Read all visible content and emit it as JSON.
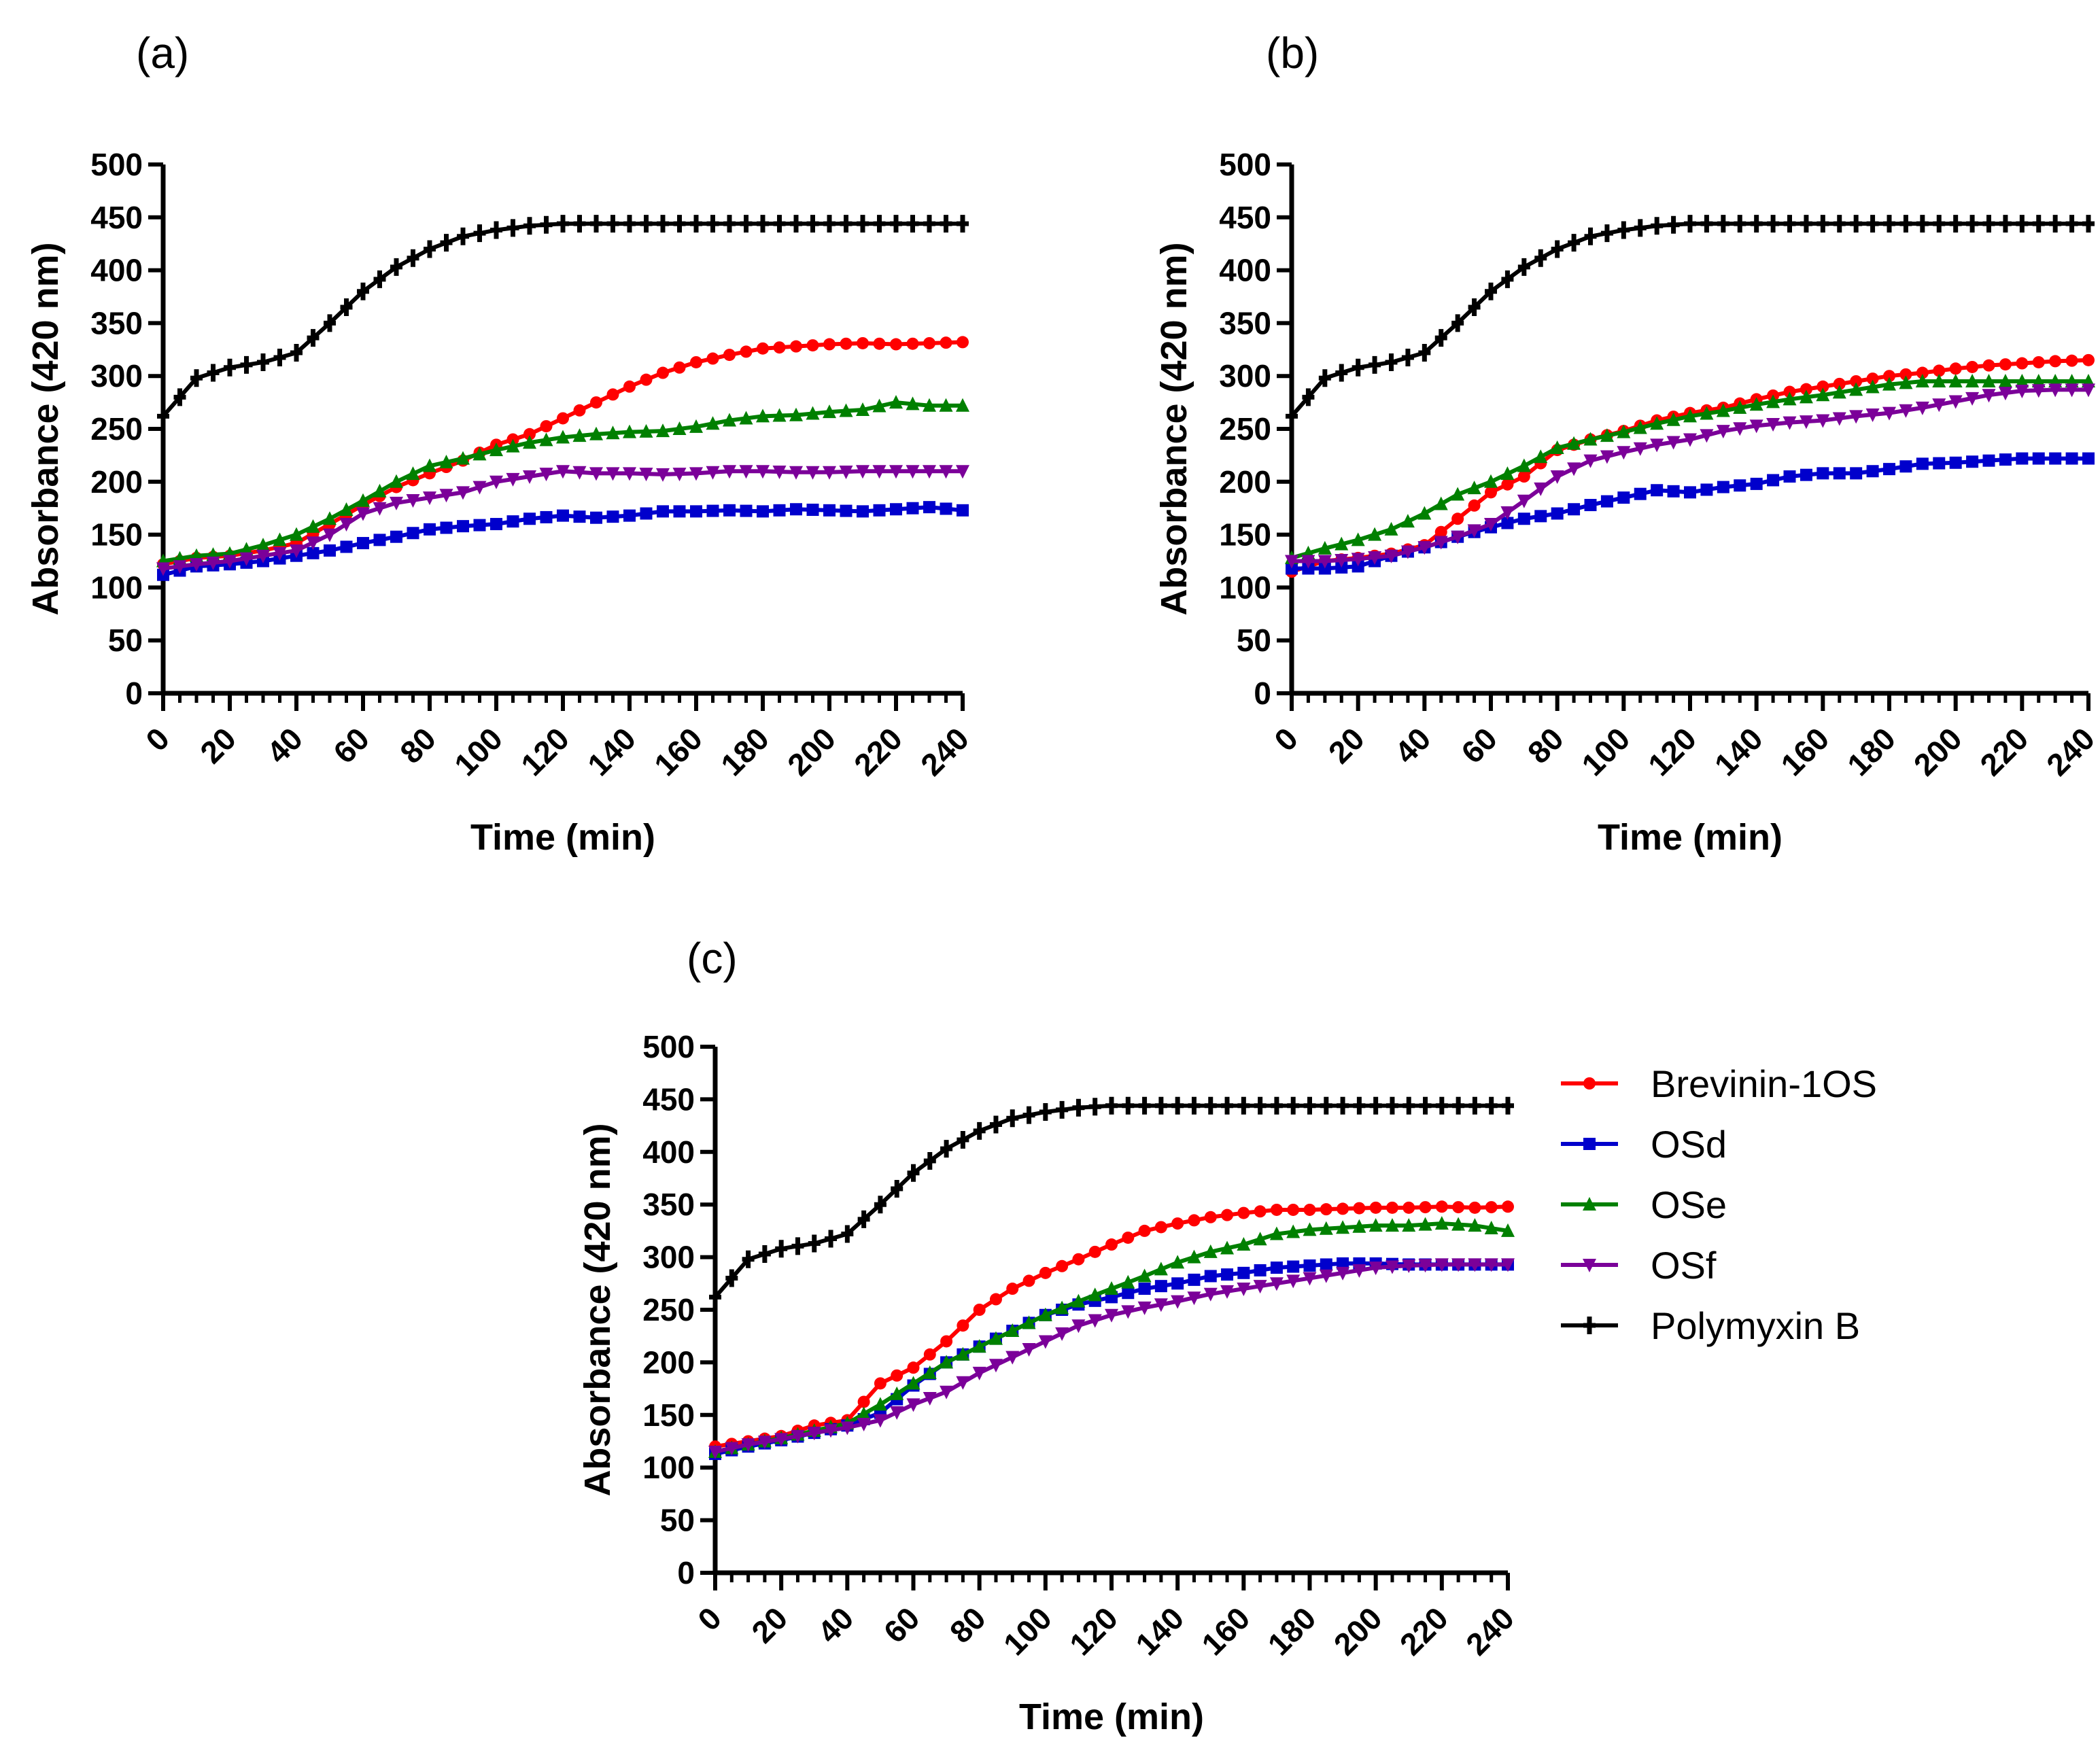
{
  "chart_data": [
    {
      "type": "line",
      "panel_label": "(a)",
      "xlabel": "Time (min)",
      "ylabel": "Absorbance (420 nm)",
      "xlim": [
        0,
        240
      ],
      "ylim": [
        0,
        500
      ],
      "x_ticks": [
        0,
        20,
        40,
        60,
        80,
        100,
        120,
        140,
        160,
        180,
        200,
        220,
        240
      ],
      "y_ticks": [
        0,
        50,
        100,
        150,
        200,
        250,
        300,
        350,
        400,
        450,
        500
      ],
      "x": [
        0,
        10,
        20,
        30,
        40,
        50,
        60,
        70,
        80,
        90,
        100,
        110,
        120,
        130,
        140,
        150,
        160,
        170,
        180,
        190,
        200,
        210,
        220,
        230,
        240
      ],
      "series": [
        {
          "name": "Brevinin-1OS",
          "color": "#ff0000",
          "marker": "circle",
          "values": [
            122,
            128,
            130,
            135,
            142,
            160,
            178,
            195,
            208,
            220,
            235,
            245,
            260,
            275,
            290,
            303,
            313,
            320,
            326,
            328,
            330,
            331,
            330,
            331,
            332
          ]
        },
        {
          "name": "OSd",
          "color": "#0000cc",
          "marker": "square",
          "values": [
            112,
            120,
            122,
            125,
            130,
            135,
            142,
            148,
            155,
            158,
            160,
            165,
            168,
            166,
            168,
            172,
            172,
            173,
            172,
            174,
            173,
            172,
            174,
            176,
            173
          ]
        },
        {
          "name": "OSe",
          "color": "#008000",
          "marker": "triangle",
          "values": [
            125,
            130,
            132,
            140,
            150,
            165,
            182,
            200,
            215,
            222,
            230,
            237,
            242,
            245,
            247,
            248,
            252,
            258,
            262,
            263,
            266,
            268,
            275,
            272,
            272
          ]
        },
        {
          "name": "OSf",
          "color": "#7b0099",
          "marker": "triangle-down",
          "values": [
            118,
            122,
            125,
            130,
            135,
            150,
            170,
            180,
            185,
            190,
            200,
            205,
            210,
            208,
            208,
            207,
            208,
            210,
            210,
            209,
            209,
            210,
            210,
            210,
            210
          ]
        },
        {
          "name": "Polymyxin B",
          "color": "#000000",
          "marker": "plus",
          "values": [
            262,
            298,
            308,
            313,
            322,
            350,
            380,
            403,
            420,
            432,
            438,
            442,
            444,
            444,
            444,
            444,
            444,
            444,
            444,
            444,
            444,
            444,
            444,
            444,
            444
          ]
        }
      ]
    },
    {
      "type": "line",
      "panel_label": "(b)",
      "xlabel": "Time (min)",
      "ylabel": "Absorbance (420 nm)",
      "xlim": [
        0,
        240
      ],
      "ylim": [
        0,
        500
      ],
      "x_ticks": [
        0,
        20,
        40,
        60,
        80,
        100,
        120,
        140,
        160,
        180,
        200,
        220,
        240
      ],
      "y_ticks": [
        0,
        50,
        100,
        150,
        200,
        250,
        300,
        350,
        400,
        450,
        500
      ],
      "x": [
        0,
        10,
        20,
        30,
        40,
        50,
        60,
        70,
        80,
        90,
        100,
        110,
        120,
        130,
        140,
        150,
        160,
        170,
        180,
        190,
        200,
        210,
        220,
        230,
        240
      ],
      "series": [
        {
          "name": "Brevinin-1OS",
          "color": "#ff0000",
          "marker": "circle",
          "values": [
            115,
            125,
            128,
            132,
            140,
            165,
            190,
            205,
            230,
            240,
            248,
            258,
            265,
            270,
            278,
            285,
            290,
            295,
            300,
            303,
            307,
            310,
            312,
            314,
            315
          ]
        },
        {
          "name": "OSd",
          "color": "#0000cc",
          "marker": "square",
          "values": [
            118,
            118,
            120,
            130,
            138,
            148,
            157,
            165,
            170,
            178,
            185,
            192,
            190,
            195,
            198,
            205,
            208,
            208,
            212,
            217,
            218,
            220,
            222,
            222,
            222
          ]
        },
        {
          "name": "OSe",
          "color": "#008000",
          "marker": "triangle",
          "values": [
            128,
            137,
            145,
            155,
            170,
            188,
            200,
            215,
            232,
            240,
            247,
            255,
            262,
            267,
            273,
            278,
            282,
            287,
            292,
            295,
            295,
            295,
            295,
            295,
            295
          ]
        },
        {
          "name": "OSf",
          "color": "#7b0099",
          "marker": "triangle-down",
          "values": [
            125,
            125,
            127,
            130,
            138,
            148,
            160,
            182,
            205,
            220,
            228,
            235,
            240,
            248,
            253,
            256,
            258,
            262,
            265,
            270,
            276,
            282,
            286,
            287,
            287
          ]
        },
        {
          "name": "Polymyxin B",
          "color": "#000000",
          "marker": "plus",
          "values": [
            262,
            298,
            308,
            313,
            322,
            350,
            380,
            403,
            420,
            432,
            438,
            442,
            444,
            444,
            444,
            444,
            444,
            444,
            444,
            444,
            444,
            444,
            444,
            444,
            444
          ]
        }
      ]
    },
    {
      "type": "line",
      "panel_label": "(c)",
      "xlabel": "Time (min)",
      "ylabel": "Absorbance (420 nm)",
      "xlim": [
        0,
        240
      ],
      "ylim": [
        0,
        500
      ],
      "x_ticks": [
        0,
        20,
        40,
        60,
        80,
        100,
        120,
        140,
        160,
        180,
        200,
        220,
        240
      ],
      "y_ticks": [
        0,
        50,
        100,
        150,
        200,
        250,
        300,
        350,
        400,
        450,
        500
      ],
      "legend": "right",
      "x": [
        0,
        10,
        20,
        30,
        40,
        50,
        60,
        70,
        80,
        90,
        100,
        110,
        120,
        130,
        140,
        150,
        160,
        170,
        180,
        190,
        200,
        210,
        220,
        230,
        240
      ],
      "series": [
        {
          "name": "Brevinin-1OS",
          "color": "#ff0000",
          "marker": "circle",
          "values": [
            120,
            125,
            130,
            140,
            145,
            180,
            195,
            220,
            250,
            270,
            285,
            298,
            312,
            325,
            332,
            338,
            342,
            345,
            345,
            346,
            347,
            347,
            348,
            347,
            348
          ]
        },
        {
          "name": "OSd",
          "color": "#0000cc",
          "marker": "square",
          "values": [
            113,
            120,
            126,
            133,
            140,
            152,
            178,
            200,
            215,
            230,
            245,
            255,
            262,
            270,
            275,
            282,
            285,
            290,
            292,
            294,
            294,
            293,
            293,
            293,
            293
          ]
        },
        {
          "name": "OSe",
          "color": "#008000",
          "marker": "triangle",
          "values": [
            115,
            122,
            128,
            135,
            142,
            160,
            180,
            200,
            215,
            230,
            245,
            258,
            270,
            282,
            295,
            305,
            312,
            322,
            326,
            328,
            330,
            330,
            332,
            330,
            325
          ]
        },
        {
          "name": "OSf",
          "color": "#7b0099",
          "marker": "triangle-down",
          "values": [
            115,
            122,
            127,
            133,
            138,
            145,
            160,
            172,
            190,
            205,
            220,
            235,
            245,
            252,
            258,
            265,
            270,
            275,
            280,
            285,
            290,
            292,
            293,
            293,
            293
          ]
        },
        {
          "name": "Polymyxin B",
          "color": "#000000",
          "marker": "plus",
          "values": [
            262,
            298,
            308,
            313,
            322,
            350,
            380,
            403,
            420,
            432,
            438,
            442,
            444,
            444,
            444,
            444,
            444,
            444,
            444,
            444,
            444,
            444,
            444,
            444,
            444
          ]
        }
      ]
    }
  ]
}
